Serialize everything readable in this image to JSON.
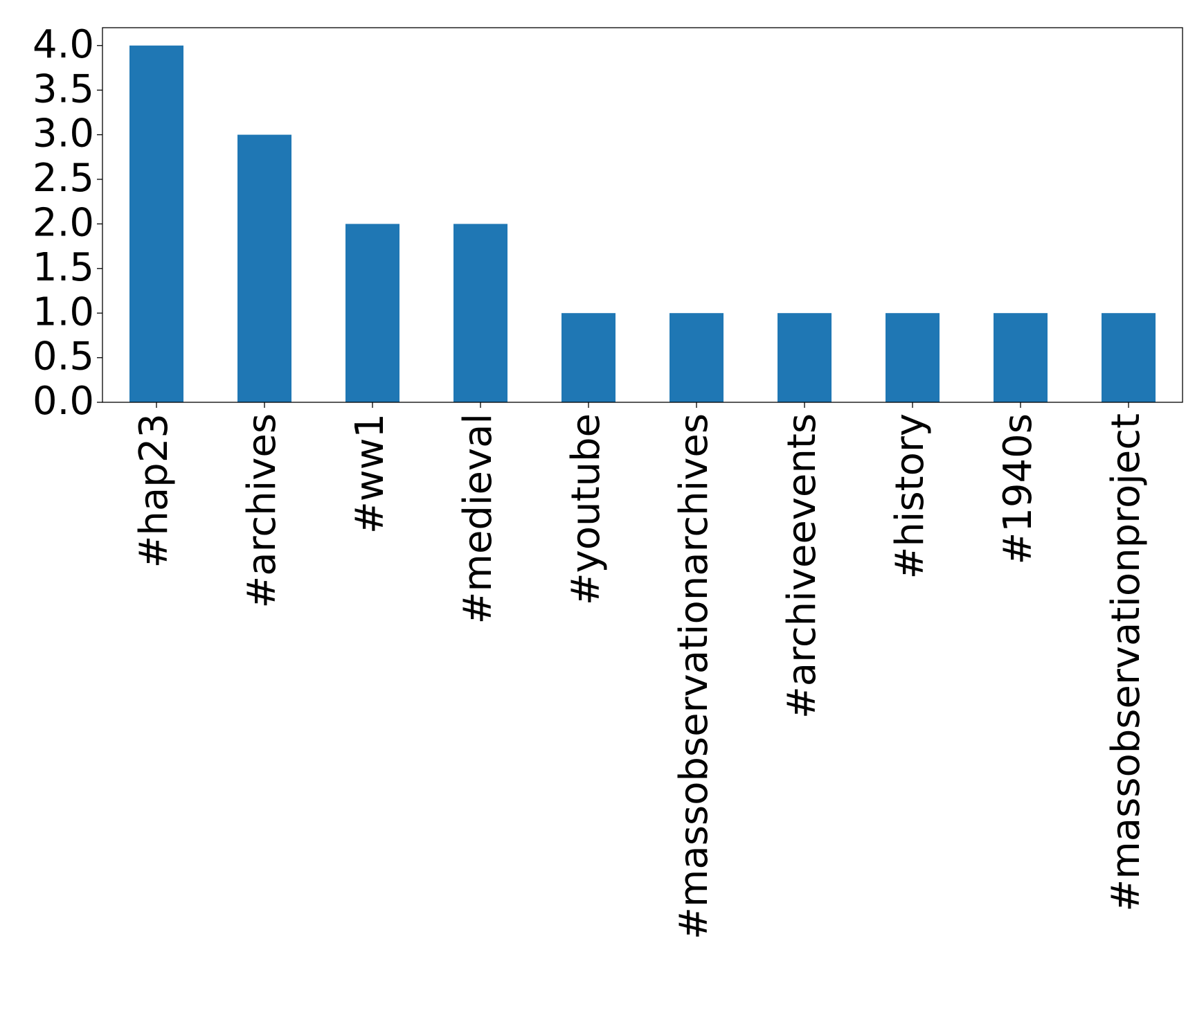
{
  "chart_data": {
    "type": "bar",
    "categories": [
      "#hap23",
      "#archives",
      "#ww1",
      "#medieval",
      "#youtube",
      "#massobservationarchives",
      "#archiveevents",
      "#history",
      "#1940s",
      "#massobservationproject"
    ],
    "values": [
      4,
      3,
      2,
      2,
      1,
      1,
      1,
      1,
      1,
      1
    ],
    "color": "#1f77b4",
    "ylim": [
      0,
      4.2
    ],
    "yticks": [
      {
        "value": 0,
        "label": "0.0"
      },
      {
        "value": 0.5,
        "label": "0.5"
      },
      {
        "value": 1,
        "label": "1.0"
      },
      {
        "value": 1.5,
        "label": "1.5"
      },
      {
        "value": 2,
        "label": "2.0"
      },
      {
        "value": 2.5,
        "label": "2.5"
      },
      {
        "value": 3,
        "label": "3.0"
      },
      {
        "value": 3.5,
        "label": "3.5"
      },
      {
        "value": 4,
        "label": "4.0"
      }
    ],
    "grid": false
  }
}
